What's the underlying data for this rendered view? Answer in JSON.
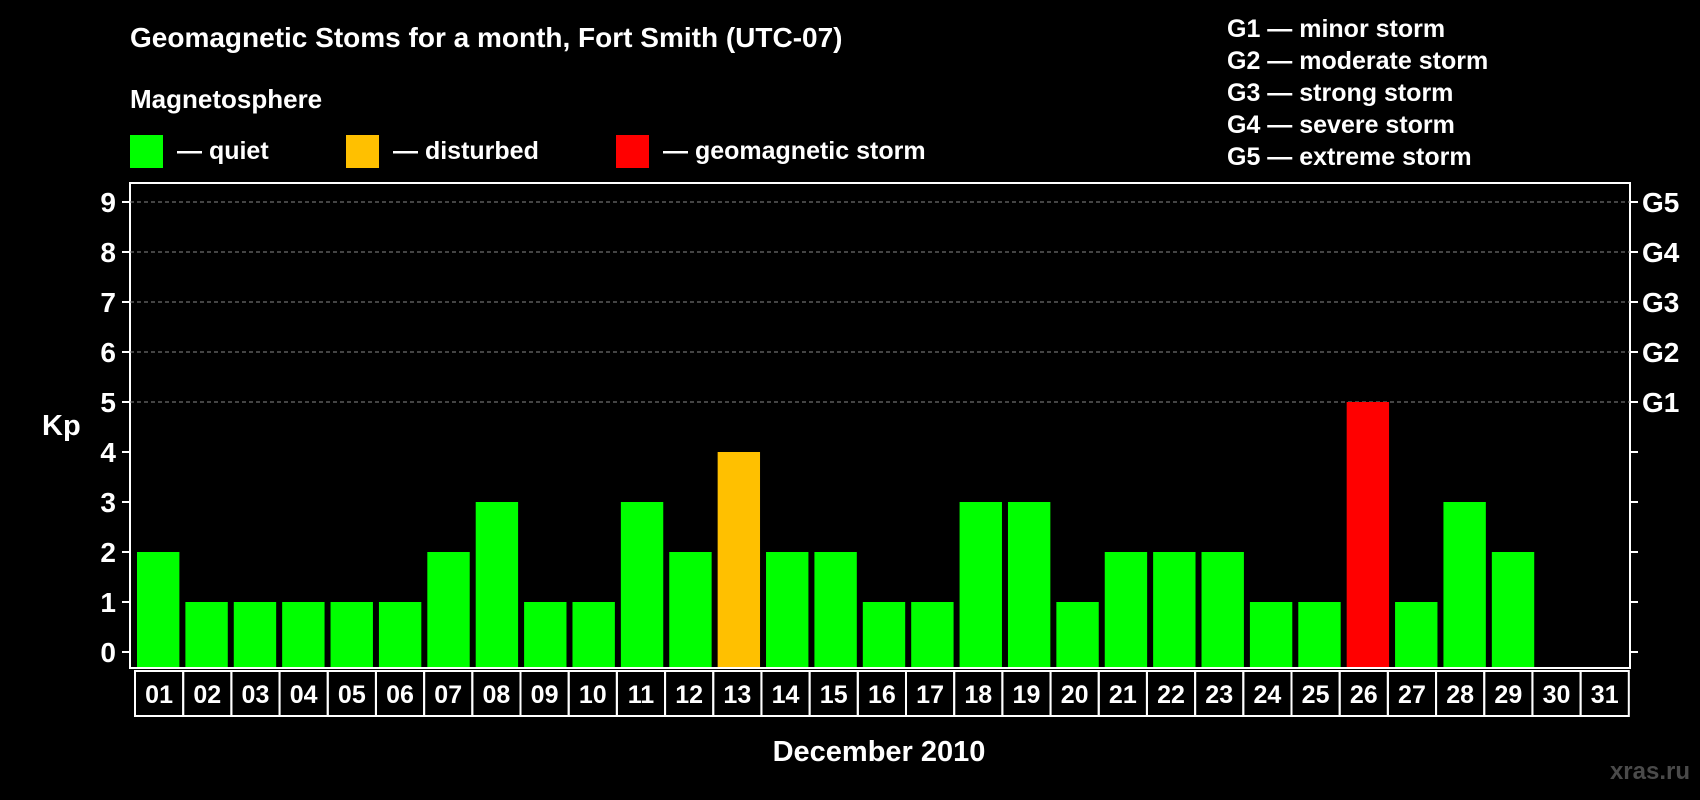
{
  "title": "Geomagnetic Stoms for a month, Fort Smith (UTC-07)",
  "legend": {
    "heading": "Magnetosphere",
    "items": [
      {
        "label": "— quiet",
        "color": "#00ff00"
      },
      {
        "label": "— disturbed",
        "color": "#ffc000"
      },
      {
        "label": "— geomagnetic storm",
        "color": "#ff0000"
      }
    ]
  },
  "storm_scale": [
    "G1 — minor storm",
    "G2 — moderate storm",
    "G3 — strong storm",
    "G4 — severe storm",
    "G5 — extreme storm"
  ],
  "watermark": "xras.ru",
  "chart_data": {
    "type": "bar",
    "title": "Geomagnetic Stoms for a month, Fort Smith (UTC-07)",
    "xlabel": "December 2010",
    "ylabel": "Kp",
    "ylim": [
      0,
      9
    ],
    "yticks": [
      "0",
      "1",
      "2",
      "3",
      "4",
      "5",
      "6",
      "7",
      "8",
      "9"
    ],
    "right_axis": [
      {
        "kp": 5,
        "label": "G1"
      },
      {
        "kp": 6,
        "label": "G2"
      },
      {
        "kp": 7,
        "label": "G3"
      },
      {
        "kp": 8,
        "label": "G4"
      },
      {
        "kp": 9,
        "label": "G5"
      }
    ],
    "grid": "dashed horizontal at Kp 5–9",
    "categories": [
      "01",
      "02",
      "03",
      "04",
      "05",
      "06",
      "07",
      "08",
      "09",
      "10",
      "11",
      "12",
      "13",
      "14",
      "15",
      "16",
      "17",
      "18",
      "19",
      "20",
      "21",
      "22",
      "23",
      "24",
      "25",
      "26",
      "27",
      "28",
      "29",
      "30",
      "31"
    ],
    "values": [
      2,
      1,
      1,
      1,
      1,
      1,
      2,
      3,
      1,
      1,
      3,
      2,
      4,
      2,
      2,
      1,
      1,
      3,
      3,
      1,
      2,
      2,
      2,
      1,
      1,
      5,
      1,
      3,
      2,
      null,
      null
    ],
    "bar_colors": {
      "quiet": "#00ff00",
      "disturbed": "#ffc000",
      "storm": "#ff0000"
    }
  }
}
